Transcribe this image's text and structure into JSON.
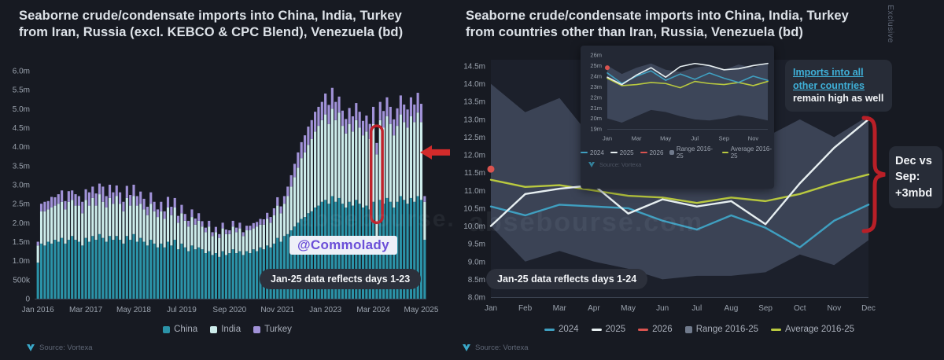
{
  "page": {
    "background": "#171a22",
    "exclusive_label": "Exclusive"
  },
  "footer": {
    "source": "Source: Vortexa"
  },
  "watermark": "absebourse.com",
  "charts": {
    "left": {
      "title_lines": [
        "Seaborne crude/condensate imports into China, India, Turkey",
        "from Iran, Russia (excl. KEBCO & CPC Blend), Venezuela (bd)"
      ],
      "note": "Jan-25 data reflects days 1-23",
      "handle": "@Commolady"
    },
    "right": {
      "title_lines": [
        "Seaborne crude/condensate imports into China, India, Turkey",
        "from countries other than Iran, Russia, Venezuela (bd)"
      ],
      "note": "Jan-25 data reflects days 1-24",
      "callout_link": "Imports into all other countries",
      "callout_rest": "remain high as well",
      "bracket_label": "Dec vs Sep: +3mbd"
    }
  },
  "chart_data": [
    {
      "id": "imports-from-iran-russia-venezuela",
      "type": "bar",
      "stacked": true,
      "title": "Seaborne crude/condensate imports into China, India, Turkey from Iran, Russia (excl. KEBCO & CPC Blend), Venezuela (bd)",
      "ylim": [
        0,
        6.0
      ],
      "ytick_labels": [
        "0",
        "500k",
        "1.0m",
        "1.5m",
        "2.0m",
        "2.5m",
        "3.0m",
        "3.5m",
        "4.0m",
        "4.5m",
        "5.0m",
        "5.5m",
        "6.0m"
      ],
      "xticks": [
        {
          "index": 0,
          "label": "Jan 2016"
        },
        {
          "index": 14,
          "label": "Mar 2017"
        },
        {
          "index": 28,
          "label": "May 2018"
        },
        {
          "index": 42,
          "label": "Jul 2019"
        },
        {
          "index": 56,
          "label": "Sep 2020"
        },
        {
          "index": 70,
          "label": "Nov 2021"
        },
        {
          "index": 84,
          "label": "Jan 2023"
        },
        {
          "index": 98,
          "label": "Mar 2024"
        },
        {
          "index": 112,
          "label": "May 2025"
        }
      ],
      "series": [
        {
          "name": "China",
          "color": "#2b93a8",
          "marker": "square"
        },
        {
          "name": "India",
          "color": "#cdeceb",
          "marker": "square"
        },
        {
          "name": "Turkey",
          "color": "#a192d8",
          "marker": "square"
        }
      ],
      "bars_unit": "million bd, stacked [China, India, Turkey], monthly Jan 2016 - Jun 2025",
      "bars": [
        [
          0.95,
          0.45,
          0.1
        ],
        [
          1.45,
          0.85,
          0.2
        ],
        [
          1.4,
          0.9,
          0.25
        ],
        [
          1.5,
          0.85,
          0.22
        ],
        [
          1.45,
          0.95,
          0.28
        ],
        [
          1.55,
          0.9,
          0.22
        ],
        [
          1.5,
          1.0,
          0.25
        ],
        [
          1.6,
          0.95,
          0.3
        ],
        [
          1.45,
          0.9,
          0.22
        ],
        [
          1.55,
          1.0,
          0.28
        ],
        [
          1.65,
          0.95,
          0.25
        ],
        [
          1.55,
          0.9,
          0.3
        ],
        [
          1.5,
          0.95,
          0.25
        ],
        [
          1.4,
          0.85,
          0.3
        ],
        [
          1.6,
          1.0,
          0.28
        ],
        [
          1.5,
          0.95,
          0.35
        ],
        [
          1.65,
          1.0,
          0.3
        ],
        [
          1.55,
          0.9,
          0.32
        ],
        [
          1.7,
          1.05,
          0.28
        ],
        [
          1.6,
          0.95,
          0.4
        ],
        [
          1.5,
          0.9,
          0.3
        ],
        [
          1.65,
          1.0,
          0.35
        ],
        [
          1.55,
          0.95,
          0.3
        ],
        [
          1.65,
          1.05,
          0.28
        ],
        [
          1.55,
          0.95,
          0.3
        ],
        [
          1.45,
          0.85,
          0.25
        ],
        [
          1.65,
          1.0,
          0.32
        ],
        [
          1.55,
          0.9,
          0.28
        ],
        [
          1.7,
          1.0,
          0.3
        ],
        [
          1.5,
          0.95,
          0.25
        ],
        [
          1.6,
          0.9,
          0.32
        ],
        [
          1.5,
          0.85,
          0.28
        ],
        [
          1.4,
          0.8,
          0.22
        ],
        [
          1.55,
          0.95,
          0.3
        ],
        [
          1.45,
          0.85,
          0.25
        ],
        [
          1.35,
          0.8,
          0.2
        ],
        [
          1.45,
          0.85,
          0.25
        ],
        [
          1.35,
          0.75,
          0.2
        ],
        [
          1.5,
          0.9,
          0.28
        ],
        [
          1.4,
          0.8,
          0.22
        ],
        [
          1.55,
          0.85,
          0.25
        ],
        [
          1.3,
          0.7,
          0.18
        ],
        [
          1.45,
          0.8,
          0.22
        ],
        [
          1.35,
          0.7,
          0.18
        ],
        [
          1.25,
          0.65,
          0.15
        ],
        [
          1.4,
          0.75,
          0.2
        ],
        [
          1.3,
          0.65,
          0.16
        ],
        [
          1.35,
          0.7,
          0.2
        ],
        [
          1.3,
          0.6,
          0.14
        ],
        [
          1.2,
          0.55,
          0.12
        ],
        [
          1.25,
          0.65,
          0.15
        ],
        [
          1.15,
          0.5,
          0.1
        ],
        [
          1.2,
          0.55,
          0.14
        ],
        [
          1.1,
          0.5,
          0.1
        ],
        [
          1.25,
          0.6,
          0.15
        ],
        [
          1.15,
          0.55,
          0.12
        ],
        [
          1.2,
          0.5,
          0.1
        ],
        [
          1.3,
          0.6,
          0.15
        ],
        [
          1.2,
          0.55,
          0.12
        ],
        [
          1.25,
          0.6,
          0.15
        ],
        [
          1.15,
          0.5,
          0.1
        ],
        [
          1.25,
          0.55,
          0.12
        ],
        [
          1.2,
          0.6,
          0.12
        ],
        [
          1.3,
          0.55,
          0.14
        ],
        [
          1.25,
          0.65,
          0.12
        ],
        [
          1.35,
          0.6,
          0.15
        ],
        [
          1.3,
          0.65,
          0.14
        ],
        [
          1.4,
          0.7,
          0.16
        ],
        [
          1.35,
          0.65,
          0.15
        ],
        [
          1.45,
          0.75,
          0.18
        ],
        [
          1.6,
          0.85,
          0.22
        ],
        [
          1.5,
          0.75,
          0.18
        ],
        [
          1.65,
          0.85,
          0.2
        ],
        [
          1.7,
          1.0,
          0.25
        ],
        [
          1.8,
          1.15,
          0.3
        ],
        [
          1.9,
          1.3,
          0.35
        ],
        [
          2.0,
          1.45,
          0.4
        ],
        [
          2.1,
          1.6,
          0.42
        ],
        [
          2.15,
          1.7,
          0.45
        ],
        [
          2.25,
          1.8,
          0.48
        ],
        [
          2.3,
          1.9,
          0.5
        ],
        [
          2.4,
          2.0,
          0.52
        ],
        [
          2.45,
          2.1,
          0.5
        ],
        [
          2.55,
          2.15,
          0.48
        ],
        [
          2.6,
          2.25,
          0.55
        ],
        [
          2.5,
          2.1,
          0.5
        ],
        [
          2.7,
          2.3,
          0.55
        ],
        [
          2.55,
          2.15,
          0.48
        ],
        [
          2.65,
          2.25,
          0.42
        ],
        [
          2.5,
          2.05,
          0.4
        ],
        [
          2.4,
          1.95,
          0.38
        ],
        [
          2.55,
          2.05,
          0.42
        ],
        [
          2.45,
          1.95,
          0.4
        ],
        [
          2.6,
          2.1,
          0.45
        ],
        [
          2.5,
          2.0,
          0.42
        ],
        [
          2.4,
          1.9,
          0.38
        ],
        [
          2.45,
          1.95,
          0.42
        ],
        [
          2.35,
          1.85,
          0.4
        ],
        [
          2.55,
          2.05,
          0.45
        ],
        [
          1.3,
          2.5,
          0.3
        ],
        [
          2.6,
          2.1,
          0.48
        ],
        [
          2.5,
          2.0,
          0.44
        ],
        [
          2.65,
          2.15,
          0.5
        ],
        [
          2.55,
          2.05,
          0.45
        ],
        [
          2.4,
          1.9,
          0.42
        ],
        [
          2.55,
          2.0,
          0.46
        ],
        [
          2.7,
          2.15,
          0.5
        ],
        [
          2.6,
          2.05,
          0.46
        ],
        [
          2.5,
          2.0,
          0.48
        ],
        [
          2.65,
          2.15,
          0.5
        ],
        [
          2.55,
          2.1,
          0.46
        ],
        [
          2.7,
          2.2,
          0.52
        ],
        [
          2.6,
          2.05,
          0.48
        ],
        [
          1.55,
          1.0,
          0.15
        ]
      ],
      "highlight": {
        "bar_index": 99,
        "from_value": 4.55,
        "to_value": 2.0,
        "color": "#c0232c"
      },
      "arrow": {
        "value": 3.85,
        "color": "#d22b2b"
      }
    },
    {
      "id": "imports-from-other-countries",
      "type": "line",
      "title": "Seaborne crude/condensate imports into China, India, Turkey from countries other than Iran, Russia, Venezuela (bd)",
      "x": [
        "Jan",
        "Feb",
        "Mar",
        "Apr",
        "May",
        "Jun",
        "Jul",
        "Aug",
        "Sep",
        "Oct",
        "Nov",
        "Dec"
      ],
      "ylim": [
        8.0,
        14.5
      ],
      "ytick_labels": [
        "8.0m",
        "8.5m",
        "9.0m",
        "9.5m",
        "10.0m",
        "10.5m",
        "11.0m",
        "11.5m",
        "12.0m",
        "12.5m",
        "13.0m",
        "13.5m",
        "14.0m",
        "14.5m"
      ],
      "series": [
        {
          "name": "2024",
          "color": "#3f9fc0",
          "marker": "line",
          "z": 1,
          "values": [
            10.55,
            10.3,
            10.6,
            10.55,
            10.5,
            10.15,
            9.9,
            10.3,
            9.95,
            9.4,
            10.15,
            10.6
          ]
        },
        {
          "name": "2025",
          "color": "#e7eff1",
          "marker": "line",
          "z": 2,
          "values": [
            10.0,
            10.9,
            11.05,
            11.15,
            10.35,
            10.75,
            10.55,
            10.7,
            10.05,
            11.2,
            12.2,
            13.0
          ]
        },
        {
          "name": "2026",
          "color": "#d9534f",
          "marker": "line",
          "z": 3,
          "values": [
            11.6,
            null,
            null,
            null,
            null,
            null,
            null,
            null,
            null,
            null,
            null,
            null
          ]
        },
        {
          "name": "Range 2016-25",
          "color": "#3b4355",
          "legend_color": "#707a8c",
          "marker": "square",
          "upper": [
            14.0,
            13.2,
            13.6,
            12.4,
            12.3,
            12.5,
            12.6,
            12.4,
            12.5,
            13.0,
            12.5,
            13.1
          ],
          "lower": [
            10.0,
            9.0,
            9.3,
            9.0,
            8.8,
            8.5,
            8.6,
            8.6,
            8.7,
            9.2,
            8.9,
            9.6
          ]
        },
        {
          "name": "Average 2016-25",
          "color": "#b9c93f",
          "marker": "line",
          "z": 0,
          "values": [
            11.3,
            11.1,
            11.15,
            11.0,
            10.85,
            10.8,
            10.65,
            10.8,
            10.7,
            10.9,
            11.2,
            11.45
          ]
        }
      ]
    },
    {
      "id": "total-imports-inset",
      "type": "line",
      "x": [
        "Jan",
        "Feb",
        "Mar",
        "Apr",
        "May",
        "Jun",
        "Jul",
        "Aug",
        "Sep",
        "Oct",
        "Nov",
        "Dec"
      ],
      "xtick_indices": [
        0,
        2,
        4,
        6,
        8,
        10
      ],
      "ylim": [
        19,
        26
      ],
      "ytick_labels": [
        "19m",
        "20m",
        "21m",
        "22m",
        "23m",
        "24m",
        "25m",
        "26m"
      ],
      "series": [
        {
          "name": "2024",
          "color": "#3f9fc0",
          "marker": "line",
          "z": 1,
          "values": [
            24.3,
            23.3,
            24.0,
            24.5,
            23.6,
            24.2,
            23.7,
            24.3,
            23.8,
            23.4,
            24.0,
            23.6
          ]
        },
        {
          "name": "2025",
          "color": "#e7eff1",
          "marker": "line",
          "z": 2,
          "values": [
            23.9,
            23.2,
            24.1,
            24.8,
            23.9,
            24.9,
            25.2,
            25.0,
            24.6,
            24.7,
            25.0,
            25.2
          ]
        },
        {
          "name": "2026",
          "color": "#d9534f",
          "marker": "line",
          "z": 3,
          "values": [
            24.8,
            null,
            null,
            null,
            null,
            null,
            null,
            null,
            null,
            null,
            null,
            null
          ]
        },
        {
          "name": "Range 2016-25",
          "color": "#3d4659",
          "legend_color": "#707a8c",
          "marker": "square",
          "upper": [
            25.0,
            24.2,
            24.8,
            25.2,
            24.6,
            24.4,
            24.8,
            25.0,
            24.6,
            25.1,
            24.8,
            25.3
          ],
          "lower": [
            20.0,
            19.6,
            20.2,
            20.8,
            20.6,
            20.2,
            19.9,
            19.8,
            20.0,
            20.3,
            20.1,
            19.8
          ]
        },
        {
          "name": "Average 2016-25",
          "color": "#b9c93f",
          "marker": "line",
          "z": 0,
          "values": [
            23.8,
            23.1,
            23.2,
            23.4,
            23.3,
            22.9,
            23.5,
            23.3,
            23.2,
            23.4,
            23.1,
            23.5
          ]
        }
      ]
    }
  ]
}
